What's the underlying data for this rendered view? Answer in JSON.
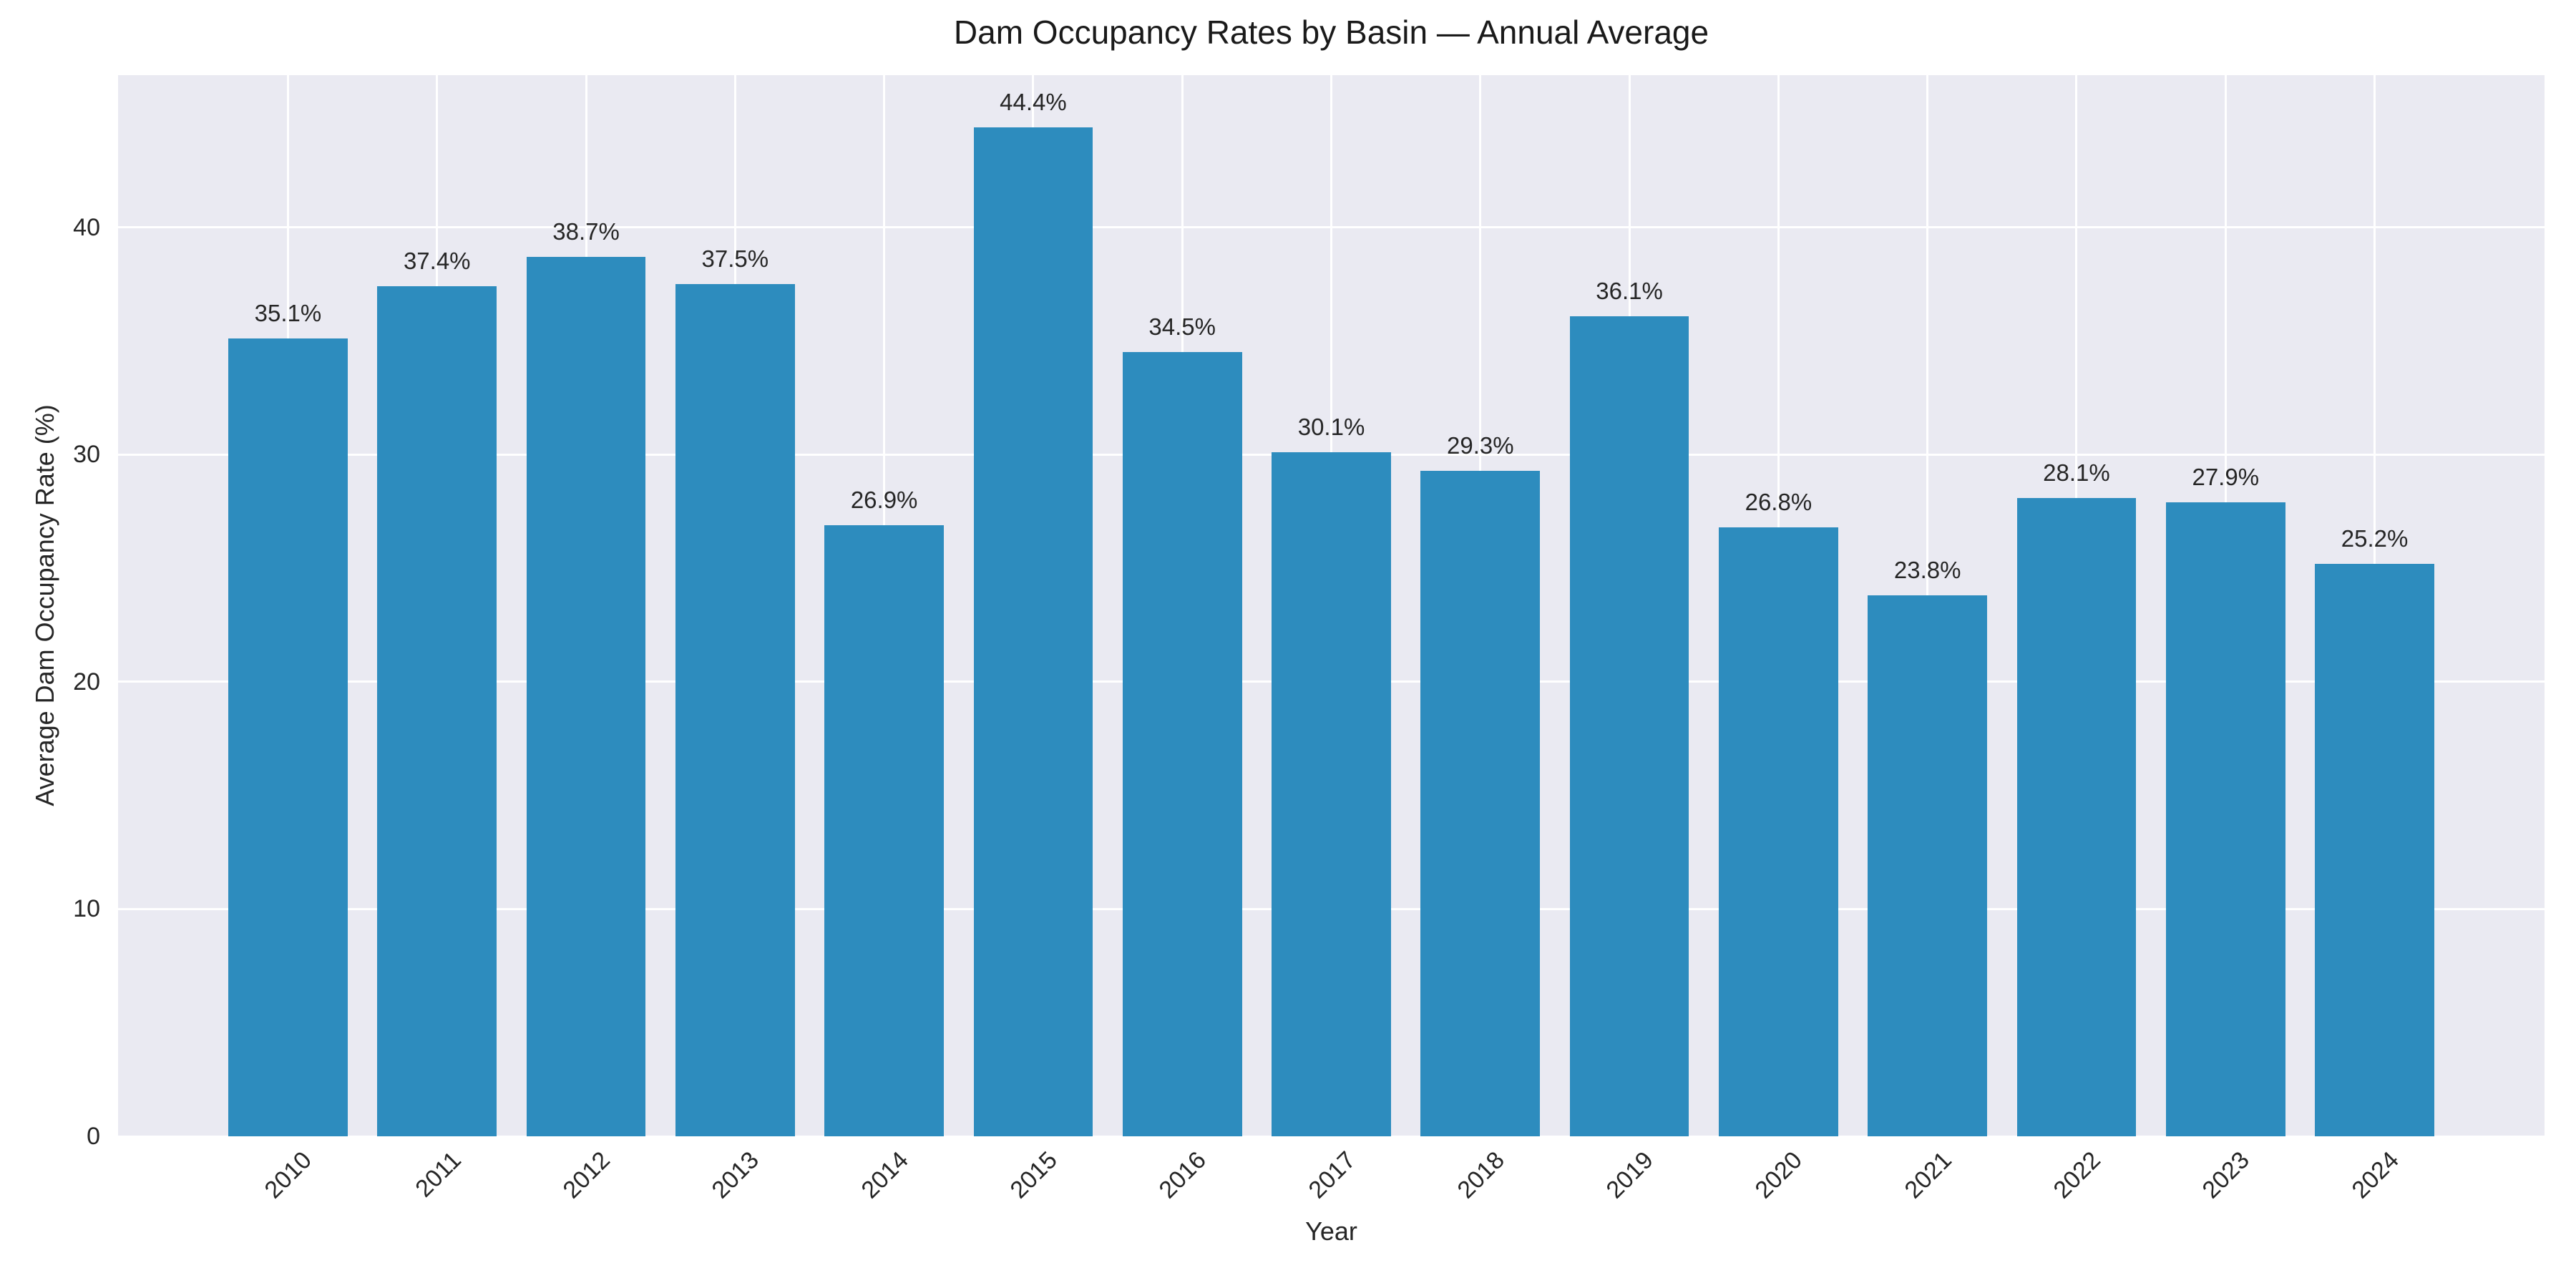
{
  "chart_data": {
    "type": "bar",
    "title": "Dam Occupancy Rates by Basin — Annual Average",
    "xlabel": "Year",
    "ylabel": "Average Dam Occupancy Rate (%)",
    "categories": [
      "2010",
      "2011",
      "2012",
      "2013",
      "2014",
      "2015",
      "2016",
      "2017",
      "2018",
      "2019",
      "2020",
      "2021",
      "2022",
      "2023",
      "2024"
    ],
    "values": [
      35.1,
      37.4,
      38.7,
      37.5,
      26.9,
      44.4,
      34.5,
      30.1,
      29.3,
      36.1,
      26.8,
      23.8,
      28.1,
      27.9,
      25.2
    ],
    "bar_labels": [
      "35.1%",
      "37.4%",
      "38.7%",
      "37.5%",
      "26.9%",
      "44.4%",
      "34.5%",
      "30.1%",
      "29.3%",
      "36.1%",
      "26.8%",
      "23.8%",
      "28.1%",
      "27.9%",
      "25.2%"
    ],
    "y_ticks": [
      0,
      10,
      20,
      30,
      40
    ],
    "ylim": [
      0,
      46.7
    ],
    "x_tick_rotation": 45,
    "grid": true,
    "legend": false,
    "colors": {
      "bar": "#2d8cbe",
      "plot_background": "#eaeaf2",
      "figure_background": "#ffffff",
      "gridline": "#ffffff",
      "text": "#262626"
    }
  }
}
